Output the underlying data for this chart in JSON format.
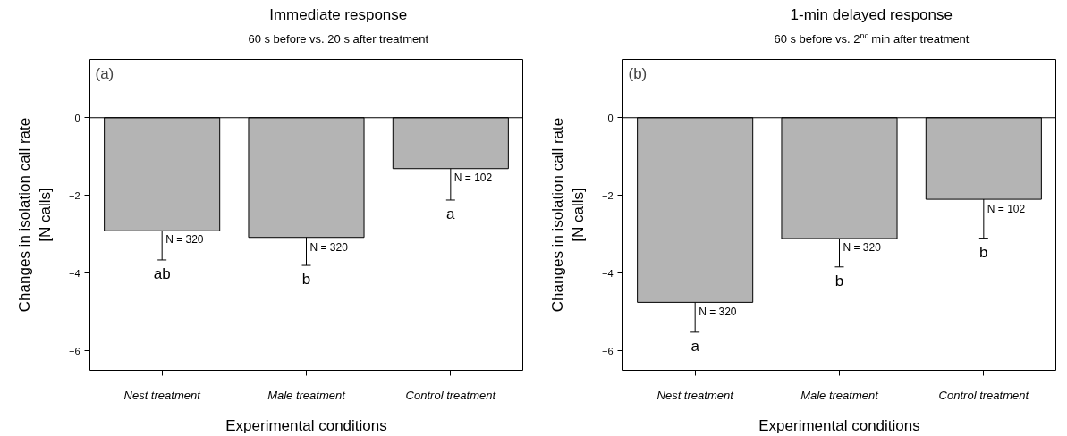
{
  "chart_data": [
    {
      "type": "bar",
      "title": "Immediate response",
      "subtitle": "60 s before vs. 20 s after treatment",
      "xlabel": "Experimental conditions",
      "ylabel": "Changes in isolation call rate\n[N calls]",
      "categories": [
        "Nest treatment",
        "Male treatment",
        "Control treatment"
      ],
      "values": [
        -2.91,
        -3.08,
        -1.31
      ],
      "color": "#b4b4b4",
      "errors": [
        0.75,
        0.72,
        0.81
      ],
      "ylim": [
        -6.5,
        1.5
      ],
      "yticks": [
        0,
        -2,
        -4,
        -6
      ],
      "grid": false,
      "ref_lines": [
        {
          "axis": "y",
          "value": 0
        }
      ],
      "annotations": [
        "(a)",
        {
          "text": "N = 320",
          "x": "Nest treatment",
          "y": -3.14
        },
        {
          "text": "ab",
          "x": "Nest treatment",
          "y": -3.66
        },
        {
          "text": "N = 320",
          "x": "Male treatment",
          "y": -3.34
        },
        {
          "text": "b",
          "x": "Male treatment",
          "y": -3.8
        },
        {
          "text": "N = 102",
          "x": "Control treatment",
          "y": -1.55
        },
        {
          "text": "a",
          "x": "Control treatment",
          "y": -2.12
        }
      ]
    },
    {
      "type": "bar",
      "title": "1-min delayed response",
      "subtitle": "60 s before vs. 2$^{nd}$ min after treatment",
      "xlabel": "Experimental conditions",
      "ylabel": "Changes in isolation call rate\n[N calls]",
      "categories": [
        "Nest treatment",
        "Male treatment",
        "Control treatment"
      ],
      "values": [
        -4.75,
        -3.11,
        -2.1
      ],
      "color": "#b4b4b4",
      "errors": [
        0.77,
        0.73,
        1.0
      ],
      "ylim": [
        -6.5,
        1.5
      ],
      "yticks": [
        0,
        -2,
        -4,
        -6
      ],
      "grid": false,
      "ref_lines": [
        {
          "axis": "y",
          "value": 0
        }
      ],
      "annotations": [
        "(b)",
        {
          "text": "N = 320",
          "x": "Nest treatment",
          "y": -5.0
        },
        {
          "text": "a",
          "x": "Nest treatment",
          "y": -5.52
        },
        {
          "text": "N = 320",
          "x": "Male treatment",
          "y": -3.35
        },
        {
          "text": "b",
          "x": "Male treatment",
          "y": -3.84
        },
        {
          "text": "N = 102",
          "x": "Control treatment",
          "y": -2.35
        },
        {
          "text": "b",
          "x": "Control treatment",
          "y": -3.1
        }
      ]
    }
  ]
}
